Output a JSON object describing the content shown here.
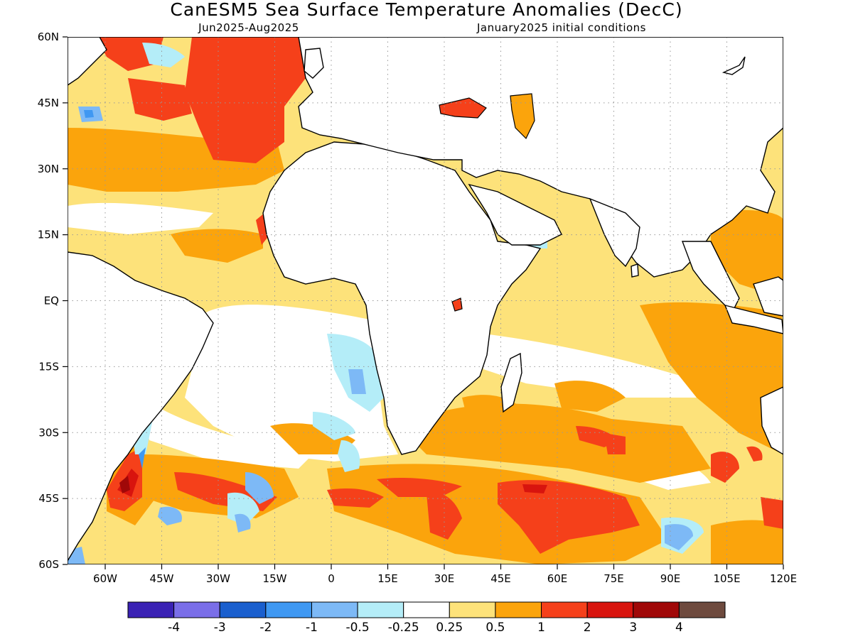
{
  "title": "CanESM5 Sea Surface Temperature Anomalies (DecC)",
  "subtitle_left": "Jun2025-Aug2025",
  "subtitle_right": "January2025 initial conditions",
  "map": {
    "lon_range": [
      -70,
      120
    ],
    "lat_range": [
      -60,
      60
    ],
    "lat_ticks": [
      {
        "value": 60,
        "label": "60N"
      },
      {
        "value": 45,
        "label": "45N"
      },
      {
        "value": 30,
        "label": "30N"
      },
      {
        "value": 15,
        "label": "15N"
      },
      {
        "value": 0,
        "label": "EQ"
      },
      {
        "value": -15,
        "label": "15S"
      },
      {
        "value": -30,
        "label": "30S"
      },
      {
        "value": -45,
        "label": "45S"
      },
      {
        "value": -60,
        "label": "60S"
      }
    ],
    "lon_ticks": [
      {
        "value": -60,
        "label": "60W"
      },
      {
        "value": -45,
        "label": "45W"
      },
      {
        "value": -30,
        "label": "30W"
      },
      {
        "value": -15,
        "label": "15W"
      },
      {
        "value": 0,
        "label": "0"
      },
      {
        "value": 15,
        "label": "15E"
      },
      {
        "value": 30,
        "label": "30E"
      },
      {
        "value": 45,
        "label": "45E"
      },
      {
        "value": 60,
        "label": "60E"
      },
      {
        "value": 75,
        "label": "75E"
      },
      {
        "value": 90,
        "label": "90E"
      },
      {
        "value": 105,
        "label": "105E"
      },
      {
        "value": 120,
        "label": "120E"
      }
    ],
    "grid": "dotted"
  },
  "colorbar": {
    "colors": [
      "#3a22b4",
      "#7a6ee8",
      "#1a5fce",
      "#3f98f2",
      "#7db9f6",
      "#b4edf8",
      "#ffffff",
      "#fde27a",
      "#fba40c",
      "#f5401a",
      "#d8140e",
      "#a00808",
      "#6e4a3e"
    ],
    "labels": [
      "-4",
      "-3",
      "-2",
      "-1",
      "-0.5",
      "-0.25",
      "0.25",
      "0.5",
      "1",
      "2",
      "3",
      "4"
    ]
  }
}
